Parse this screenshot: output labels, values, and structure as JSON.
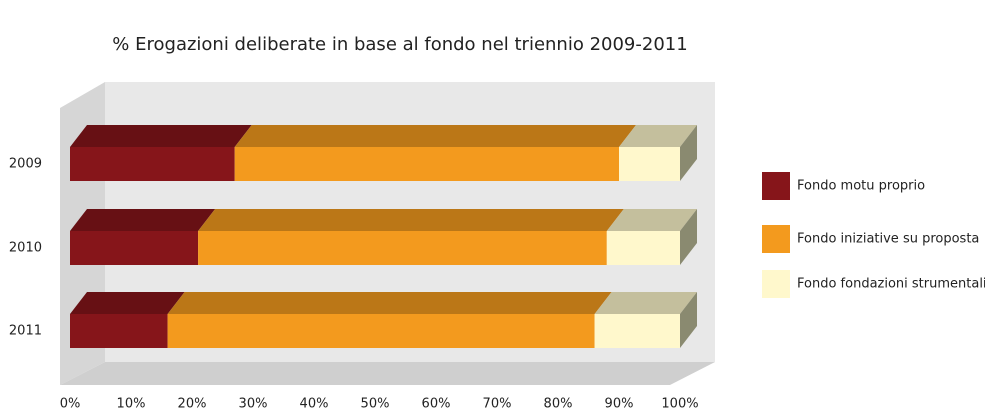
{
  "chart_data": {
    "type": "bar3d_stacked_horizontal",
    "title": "% Erogazioni deliberate in base al fondo nel triennio 2009-2011",
    "categories": [
      "2009",
      "2010",
      "2011"
    ],
    "series": [
      {
        "name": "Fondo motu proprio",
        "color": "#86151a",
        "values": [
          27,
          21,
          16
        ]
      },
      {
        "name": "Fondo iniziative su proposta",
        "color": "#f39a1e",
        "values": [
          63,
          67,
          70
        ]
      },
      {
        "name": "Fondo fondazioni strumentali",
        "color": "#fff8cc",
        "values": [
          10,
          12,
          14
        ]
      }
    ],
    "xlim": [
      0,
      100
    ],
    "xticks": [
      {
        "value": 0,
        "label": "0%"
      },
      {
        "value": 10,
        "label": "10%"
      },
      {
        "value": 20,
        "label": "20%"
      },
      {
        "value": 30,
        "label": "30%"
      },
      {
        "value": 40,
        "label": "40%"
      },
      {
        "value": 50,
        "label": "50%"
      },
      {
        "value": 60,
        "label": "60%"
      },
      {
        "value": 70,
        "label": "70%"
      },
      {
        "value": 80,
        "label": "80%"
      },
      {
        "value": 90,
        "label": "90%"
      },
      {
        "value": 100,
        "label": "100%"
      }
    ],
    "legend": "right"
  }
}
